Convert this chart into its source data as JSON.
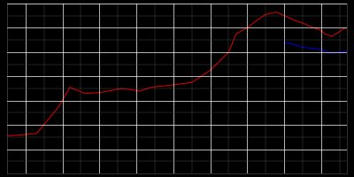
{
  "background_color": "#000000",
  "plot_bg_color": "#000000",
  "grid_color_major": "#ffffff",
  "grid_color_minor": "#555555",
  "fig_width": 4.0,
  "fig_height": 2.0,
  "dpi": 100,
  "red_data": [
    [
      1925,
      3100
    ],
    [
      1930,
      3200
    ],
    [
      1933,
      3300
    ],
    [
      1939,
      5500
    ],
    [
      1942,
      7100
    ],
    [
      1946,
      6600
    ],
    [
      1950,
      6650
    ],
    [
      1956,
      7000
    ],
    [
      1961,
      6800
    ],
    [
      1964,
      7100
    ],
    [
      1970,
      7300
    ],
    [
      1975,
      7500
    ],
    [
      1980,
      8500
    ],
    [
      1985,
      10000
    ],
    [
      1987,
      11500
    ],
    [
      1990,
      12000
    ],
    [
      1993,
      12700
    ],
    [
      1995,
      13100
    ],
    [
      1998,
      13300
    ],
    [
      2000,
      13000
    ],
    [
      2003,
      12600
    ],
    [
      2005,
      12400
    ],
    [
      2008,
      12000
    ],
    [
      2010,
      11800
    ],
    [
      2011,
      11500
    ],
    [
      2012,
      11400
    ],
    [
      2013,
      11300
    ],
    [
      2014,
      11500
    ],
    [
      2015,
      11700
    ],
    [
      2016,
      11900
    ],
    [
      2017,
      12000
    ]
  ],
  "blue_data": [
    [
      2000,
      10800
    ],
    [
      2003,
      10600
    ],
    [
      2005,
      10400
    ],
    [
      2008,
      10300
    ],
    [
      2010,
      10200
    ],
    [
      2011,
      10100
    ],
    [
      2012,
      10000
    ],
    [
      2013,
      9900
    ],
    [
      2014,
      9950
    ],
    [
      2015,
      10000
    ],
    [
      2016,
      10050
    ],
    [
      2017,
      10100
    ]
  ],
  "red_color": "#cc0000",
  "blue_color": "#0000cc",
  "xlim": [
    1925,
    2017
  ],
  "ylim": [
    0,
    14000
  ],
  "linewidth_red": 0.8,
  "linewidth_blue": 0.8,
  "xtick_major": 10,
  "ytick_major": 2000,
  "grid_lw_major": 0.5,
  "grid_lw_minor": 0.3
}
